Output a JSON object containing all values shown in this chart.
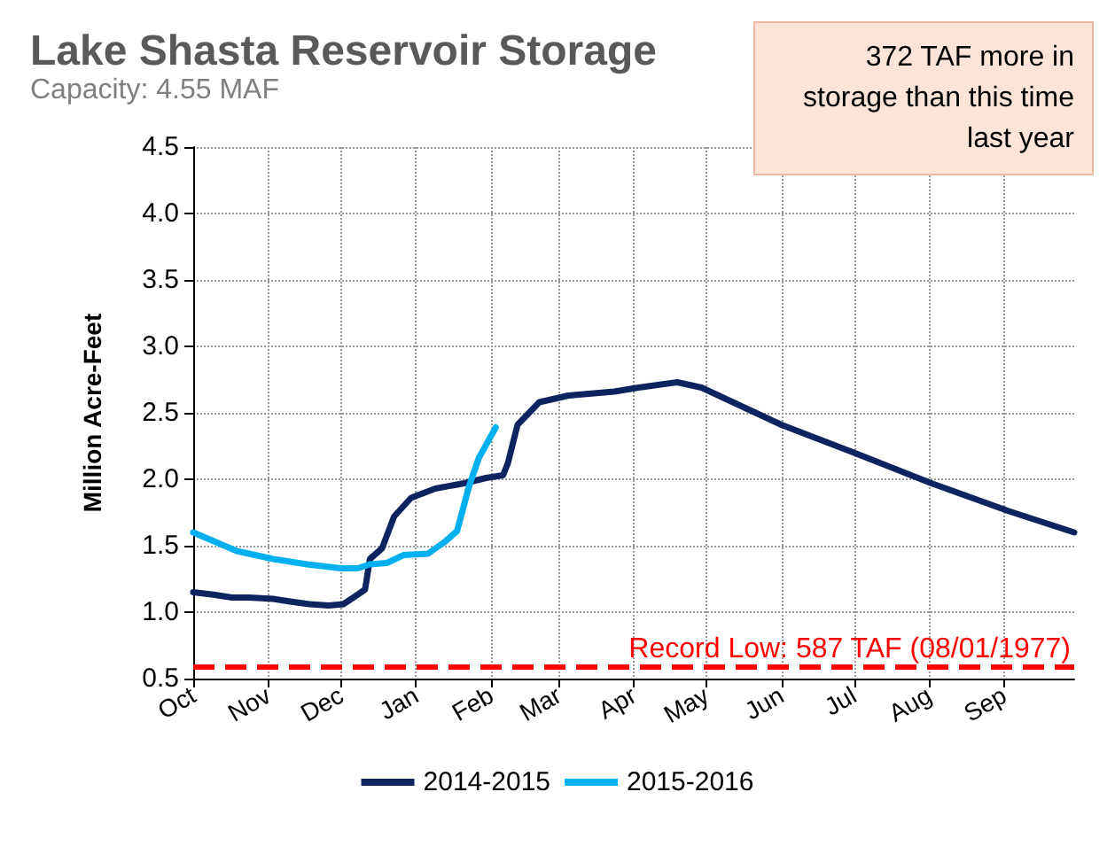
{
  "chart_data": {
    "type": "line",
    "title": "Lake Shasta Reservoir Storage",
    "subtitle": "Capacity: 4.55 MAF",
    "ylabel": "Million Acre-Feet",
    "annotations": [
      "372 TAF more in storage than this time last year"
    ],
    "xlim": [
      "2014-10-01",
      "2015-09-30"
    ],
    "xticks": [
      {
        "value": "2014-10-01",
        "label": "Oct"
      },
      {
        "value": "2014-11-01",
        "label": "Nov"
      },
      {
        "value": "2014-12-01",
        "label": "Dec"
      },
      {
        "value": "2015-01-01",
        "label": "Jan"
      },
      {
        "value": "2015-02-01",
        "label": "Feb"
      },
      {
        "value": "2015-03-01",
        "label": "Mar"
      },
      {
        "value": "2015-04-01",
        "label": "Apr"
      },
      {
        "value": "2015-05-01",
        "label": "May"
      },
      {
        "value": "2015-06-01",
        "label": "Jun"
      },
      {
        "value": "2015-07-01",
        "label": "Jul"
      },
      {
        "value": "2015-08-01",
        "label": "Aug"
      },
      {
        "value": "2015-09-01",
        "label": "Sep"
      }
    ],
    "ylim": [
      0.5,
      4.5
    ],
    "yticks": [
      {
        "value": 0.5,
        "label": "0.5"
      },
      {
        "value": 1,
        "label": "1.0"
      },
      {
        "value": 1.5,
        "label": "1.5"
      },
      {
        "value": 2,
        "label": "2.0"
      },
      {
        "value": 2.5,
        "label": "2.5"
      },
      {
        "value": 3,
        "label": "3.0"
      },
      {
        "value": 3.5,
        "label": "3.5"
      },
      {
        "value": 4,
        "label": "4.0"
      },
      {
        "value": 4.5,
        "label": "4.5"
      }
    ],
    "series": [
      {
        "name": "2014-2015",
        "color": "#0d2461",
        "x": [
          "2014-10-01",
          "2014-10-10",
          "2014-10-17",
          "2014-10-24",
          "2014-11-03",
          "2014-11-10",
          "2014-11-18",
          "2014-11-26",
          "2014-12-02",
          "2014-12-07",
          "2014-12-11",
          "2014-12-13",
          "2014-12-18",
          "2014-12-23",
          "2014-12-30",
          "2015-01-09",
          "2015-01-21",
          "2015-01-30",
          "2015-02-06",
          "2015-02-08",
          "2015-02-12",
          "2015-02-21",
          "2015-03-05",
          "2015-03-24",
          "2015-04-03",
          "2015-04-19",
          "2015-04-29",
          "2015-06-01",
          "2015-07-01",
          "2015-08-02",
          "2015-09-03",
          "2015-09-30"
        ],
        "values": [
          1.15,
          1.13,
          1.11,
          1.11,
          1.1,
          1.08,
          1.06,
          1.05,
          1.06,
          1.12,
          1.17,
          1.4,
          1.48,
          1.72,
          1.86,
          1.93,
          1.97,
          2.01,
          2.03,
          2.12,
          2.41,
          2.58,
          2.63,
          2.66,
          2.69,
          2.73,
          2.69,
          2.41,
          2.2,
          1.97,
          1.76,
          1.6
        ]
      },
      {
        "name": "2015-2016",
        "color": "#00b0f0",
        "x": [
          "2014-10-01",
          "2014-10-10",
          "2014-10-19",
          "2014-11-03",
          "2014-11-17",
          "2014-12-01",
          "2014-12-08",
          "2014-12-13",
          "2014-12-20",
          "2014-12-27",
          "2015-01-06",
          "2015-01-13",
          "2015-01-18",
          "2015-01-23",
          "2015-01-27",
          "2015-02-03"
        ],
        "values": [
          1.6,
          1.53,
          1.46,
          1.4,
          1.36,
          1.33,
          1.33,
          1.36,
          1.37,
          1.43,
          1.44,
          1.53,
          1.61,
          1.95,
          2.16,
          2.39
        ]
      }
    ],
    "ref_lines": [
      {
        "axis": "y",
        "value": 0.587,
        "label": "Record Low: 587 TAF (08/01/1977)",
        "color": "#ff0000",
        "line_style": "dashed"
      }
    ],
    "grid": true,
    "legend": "bottom",
    "marker": "none",
    "line_style": "solid"
  }
}
